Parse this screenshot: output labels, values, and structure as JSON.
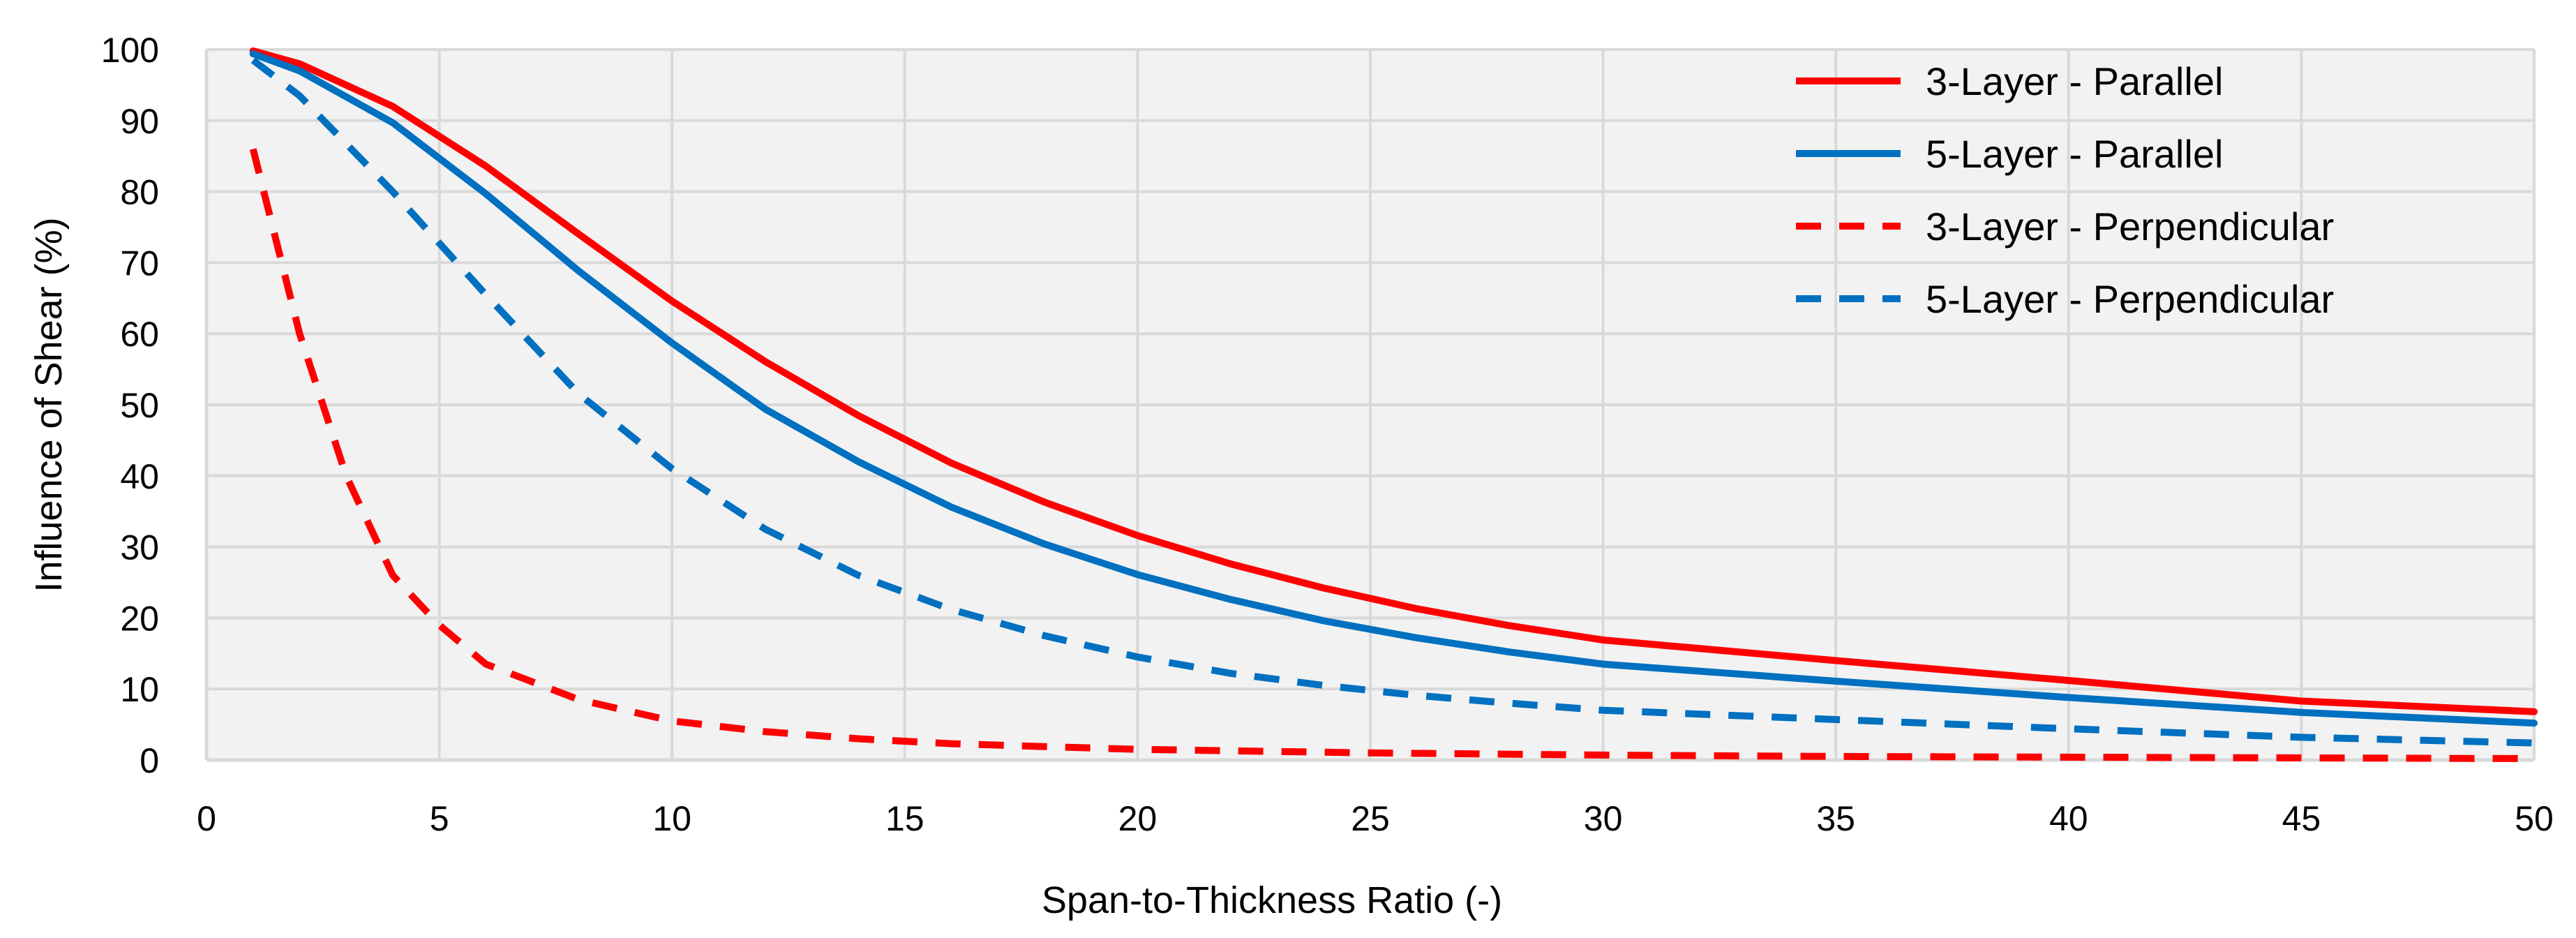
{
  "chart_data": {
    "type": "line",
    "title": "",
    "xlabel": "Span-to-Thickness Ratio (-)",
    "ylabel": "Influence of Shear (%)",
    "xlim": [
      0,
      50
    ],
    "ylim": [
      0,
      100
    ],
    "xticks": [
      0,
      5,
      10,
      15,
      20,
      25,
      30,
      35,
      40,
      45,
      50
    ],
    "yticks": [
      0,
      10,
      20,
      30,
      40,
      50,
      60,
      70,
      80,
      90,
      100
    ],
    "grid": true,
    "legend_position": "top-right",
    "colors": {
      "plot_background": "#f2f2f2",
      "grid": "#d9d9d9",
      "red": "#ff0000",
      "blue": "#0070c0"
    },
    "series": [
      {
        "name": "3-Layer - Parallel",
        "color": "#ff0000",
        "dash": "solid",
        "x": [
          1,
          2,
          4,
          6,
          8,
          10,
          12,
          14,
          16,
          18,
          20,
          22,
          24,
          26,
          28,
          30,
          35,
          40,
          45,
          50
        ],
        "y": [
          99.8,
          98,
          92,
          83.6,
          74,
          64.6,
          56.1,
          48.5,
          41.8,
          36.3,
          31.6,
          27.6,
          24.2,
          21.3,
          18.9,
          16.9,
          14.0,
          11.2,
          8.3,
          6.8
        ]
      },
      {
        "name": "5-Layer - Parallel",
        "color": "#0070c0",
        "dash": "solid",
        "x": [
          1,
          2,
          4,
          6,
          8,
          10,
          12,
          14,
          16,
          18,
          20,
          22,
          24,
          26,
          28,
          30,
          35,
          40,
          45,
          50
        ],
        "y": [
          99.4,
          97,
          89.7,
          79.7,
          68.8,
          58.7,
          49.4,
          42,
          35.6,
          30.4,
          26.1,
          22.6,
          19.6,
          17.2,
          15.2,
          13.5,
          11.1,
          8.8,
          6.7,
          5.2
        ]
      },
      {
        "name": "3-Layer - Perpendicular",
        "color": "#ff0000",
        "dash": "dashed",
        "x": [
          1,
          2,
          3,
          4,
          5,
          6,
          8,
          10,
          12,
          14,
          16,
          18,
          20,
          25,
          30,
          35,
          40,
          45,
          50
        ],
        "y": [
          86,
          60,
          40,
          26,
          19,
          13.5,
          8.5,
          5.5,
          4,
          3,
          2.3,
          1.9,
          1.5,
          1,
          0.7,
          0.5,
          0.4,
          0.3,
          0.2
        ]
      },
      {
        "name": "5-Layer - Perpendicular",
        "color": "#0070c0",
        "dash": "dashed",
        "x": [
          1,
          2,
          4,
          6,
          8,
          10,
          12,
          14,
          16,
          18,
          20,
          22,
          24,
          26,
          28,
          30,
          35,
          40,
          45,
          50
        ],
        "y": [
          98.5,
          93.5,
          80,
          65.5,
          51.5,
          41,
          32.5,
          26,
          21.2,
          17.5,
          14.5,
          12.2,
          10.5,
          9.1,
          8,
          7,
          5.7,
          4.4,
          3.2,
          2.4
        ]
      }
    ]
  }
}
